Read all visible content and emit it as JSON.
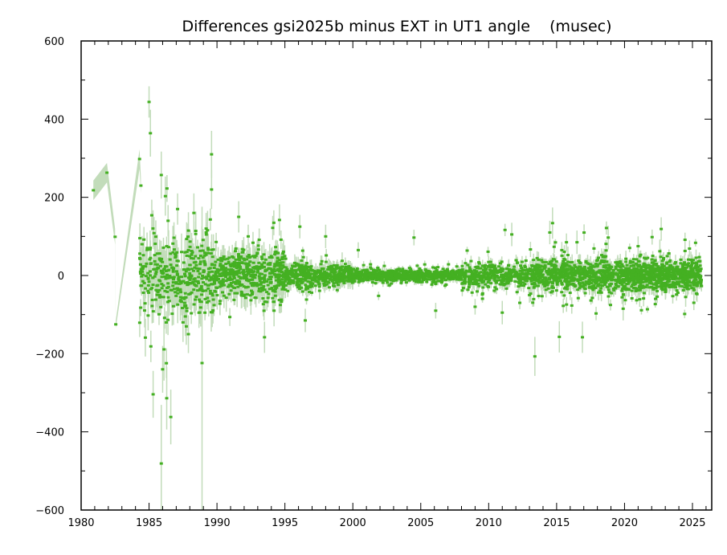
{
  "chart_data": {
    "type": "scatter",
    "title": "Differences gsi2025b minus EXT in UT1 angle    (musec)",
    "xlabel": "",
    "ylabel": "",
    "xlim": [
      1980,
      2026.4
    ],
    "ylim": [
      -600,
      600
    ],
    "xticks": [
      "1980",
      "1985",
      "1990",
      "1995",
      "2000",
      "2005",
      "2010",
      "2015",
      "2020",
      "2025"
    ],
    "yticks": [
      "600",
      "400",
      "200",
      "0",
      "−200",
      "−400",
      "−600"
    ],
    "grid": false,
    "colors": {
      "point": "#44b022",
      "errorbar": "#c2dcba",
      "axis": "#000000"
    },
    "early_points_band": [
      {
        "x": 1980.9,
        "y": 218,
        "err": 25
      },
      {
        "x": 1981.9,
        "y": 263,
        "err": 25
      },
      {
        "x": 1982.5,
        "y": 99,
        "err": 20
      },
      {
        "x": 1982.55,
        "y": -125,
        "err": 10
      },
      {
        "x": 1984.3,
        "y": 298,
        "err": 25
      },
      {
        "x": 1984.4,
        "y": 230,
        "err": 20
      }
    ],
    "outliers": [
      {
        "x": 1985.0,
        "y": 444,
        "err": 40
      },
      {
        "x": 1985.1,
        "y": 364,
        "err": 60
      },
      {
        "x": 1985.2,
        "y": 154,
        "err": 40
      },
      {
        "x": 1985.3,
        "y": -304,
        "err": 60
      },
      {
        "x": 1985.9,
        "y": -481,
        "err": 150
      },
      {
        "x": 1985.9,
        "y": 257,
        "err": 60
      },
      {
        "x": 1986.1,
        "y": -189,
        "err": 80
      },
      {
        "x": 1986.2,
        "y": 203,
        "err": 50
      },
      {
        "x": 1986.3,
        "y": -314,
        "err": 80
      },
      {
        "x": 1986.6,
        "y": -362,
        "err": 70
      },
      {
        "x": 1986.0,
        "y": -240,
        "err": 60
      },
      {
        "x": 1986.4,
        "y": 140,
        "err": 40
      },
      {
        "x": 1987.1,
        "y": 170,
        "err": 40
      },
      {
        "x": 1987.5,
        "y": -120,
        "err": 50
      },
      {
        "x": 1988.3,
        "y": 160,
        "err": 50
      },
      {
        "x": 1988.9,
        "y": -224,
        "err": 400
      },
      {
        "x": 1989.6,
        "y": 310,
        "err": 60
      },
      {
        "x": 1989.6,
        "y": 220,
        "err": 50
      },
      {
        "x": 1989.2,
        "y": 120,
        "err": 40
      },
      {
        "x": 1991.6,
        "y": 150,
        "err": 40
      },
      {
        "x": 1992.3,
        "y": 100,
        "err": 30
      },
      {
        "x": 1993.5,
        "y": -158,
        "err": 40
      },
      {
        "x": 1994.6,
        "y": 142,
        "err": 40
      },
      {
        "x": 1994.2,
        "y": -90,
        "err": 40
      },
      {
        "x": 1996.1,
        "y": 125,
        "err": 30
      },
      {
        "x": 1996.5,
        "y": -115,
        "err": 30
      },
      {
        "x": 1998.0,
        "y": 100,
        "err": 30
      },
      {
        "x": 2000.4,
        "y": 65,
        "err": 20
      },
      {
        "x": 2004.5,
        "y": 97,
        "err": 20
      },
      {
        "x": 2006.1,
        "y": -90,
        "err": 20
      },
      {
        "x": 2009.0,
        "y": -80,
        "err": 20
      },
      {
        "x": 2011.7,
        "y": 105,
        "err": 30
      },
      {
        "x": 2011.0,
        "y": -95,
        "err": 30
      },
      {
        "x": 2013.4,
        "y": -207,
        "err": 50
      },
      {
        "x": 2014.7,
        "y": 134,
        "err": 40
      },
      {
        "x": 2014.5,
        "y": 110,
        "err": 30
      },
      {
        "x": 2015.2,
        "y": -157,
        "err": 40
      },
      {
        "x": 2016.9,
        "y": -158,
        "err": 40
      },
      {
        "x": 2016.5,
        "y": 85,
        "err": 30
      },
      {
        "x": 2018.8,
        "y": 97,
        "err": 30
      },
      {
        "x": 2019.9,
        "y": -85,
        "err": 30
      },
      {
        "x": 2021.0,
        "y": 75,
        "err": 25
      },
      {
        "x": 2022.6,
        "y": 62,
        "err": 30
      },
      {
        "x": 2022.7,
        "y": 119,
        "err": 30
      },
      {
        "x": 2024.5,
        "y": -55,
        "err": 25
      }
    ],
    "scatter_density": [
      {
        "from": 1984.3,
        "to": 1990,
        "sigma": 45,
        "err": 35,
        "per_year": 70
      },
      {
        "from": 1990,
        "to": 1995,
        "sigma": 30,
        "err": 25,
        "per_year": 90
      },
      {
        "from": 1995,
        "to": 2000,
        "sigma": 14,
        "err": 15,
        "per_year": 90
      },
      {
        "from": 2000,
        "to": 2008,
        "sigma": 7,
        "err": 8,
        "per_year": 90
      },
      {
        "from": 2008,
        "to": 2013,
        "sigma": 14,
        "err": 12,
        "per_year": 80
      },
      {
        "from": 2013,
        "to": 2020,
        "sigma": 20,
        "err": 15,
        "per_year": 100
      },
      {
        "from": 2020,
        "to": 2025.7,
        "sigma": 18,
        "err": 14,
        "per_year": 130
      }
    ]
  }
}
